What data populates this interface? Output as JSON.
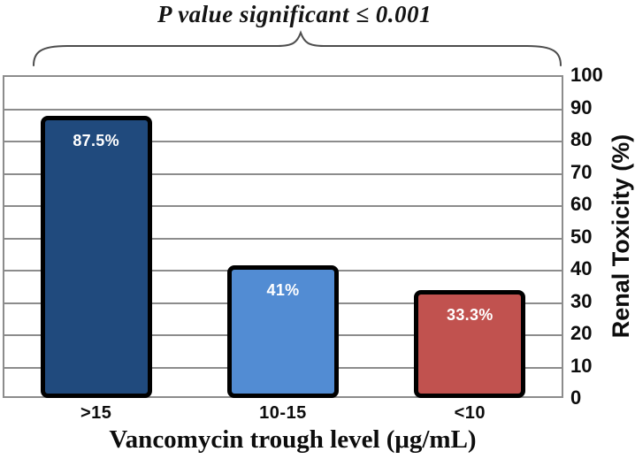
{
  "annotation": {
    "p_value_text": "P value significant ≤ 0.001"
  },
  "chart_data": {
    "type": "bar",
    "annotation": "P value significant ≤ 0.001",
    "categories": [
      ">15",
      "10-15",
      "<10"
    ],
    "values": [
      87.5,
      41,
      33.3
    ],
    "value_labels": [
      "87.5%",
      "41%",
      "33.3%"
    ],
    "bar_colors": [
      "#204A7D",
      "#528CD3",
      "#C1524F"
    ],
    "bar_border_color": "#000000",
    "value_label_color": "#FFFFFF",
    "xlabel": "Vancomycin trough level (μg/mL)",
    "ylabel": "Renal Toxicity (%)",
    "ylim": [
      0,
      100
    ],
    "yticks": [
      0,
      10,
      20,
      30,
      40,
      50,
      60,
      70,
      80,
      90,
      100
    ],
    "grid": true,
    "gridline_color": "#8c8c8c",
    "legend": "none",
    "y_axis_side": "right"
  }
}
